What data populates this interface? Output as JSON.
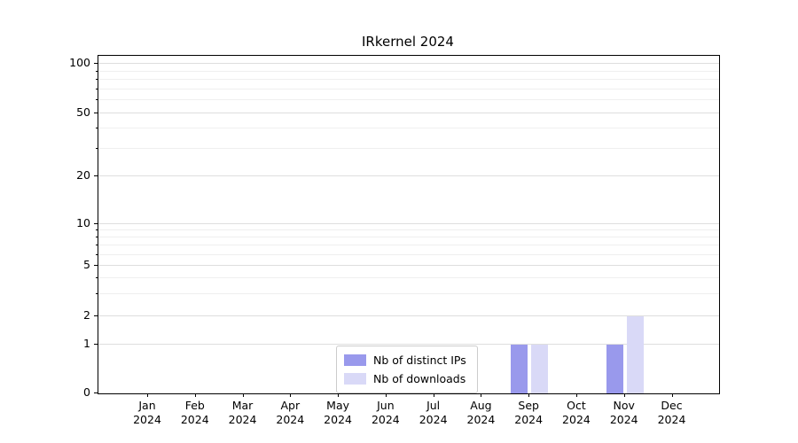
{
  "chart_data": {
    "type": "bar",
    "title": "IRkernel 2024",
    "categories": [
      "Jan 2024",
      "Feb 2024",
      "Mar 2024",
      "Apr 2024",
      "May 2024",
      "Jun 2024",
      "Jul 2024",
      "Aug 2024",
      "Sep 2024",
      "Oct 2024",
      "Nov 2024",
      "Dec 2024"
    ],
    "series": [
      {
        "name": "Nb of distinct IPs",
        "color": "#9999ec",
        "values": [
          0,
          0,
          0,
          0,
          0,
          0,
          0,
          0,
          1,
          0,
          1,
          0
        ]
      },
      {
        "name": "Nb of downloads",
        "color": "#d9d9f7",
        "values": [
          0,
          0,
          0,
          0,
          0,
          0,
          0,
          0,
          1,
          0,
          2,
          0
        ]
      }
    ],
    "y_ticks": [
      0,
      1,
      2,
      5,
      10,
      20,
      50,
      100
    ],
    "y_minor_ticks": [
      3,
      4,
      6,
      7,
      8,
      9,
      30,
      40,
      60,
      70,
      80,
      90
    ],
    "y_scale": "symlog",
    "ylim": [
      0,
      110
    ],
    "grid": "horizontal",
    "legend_position": "lower center"
  }
}
